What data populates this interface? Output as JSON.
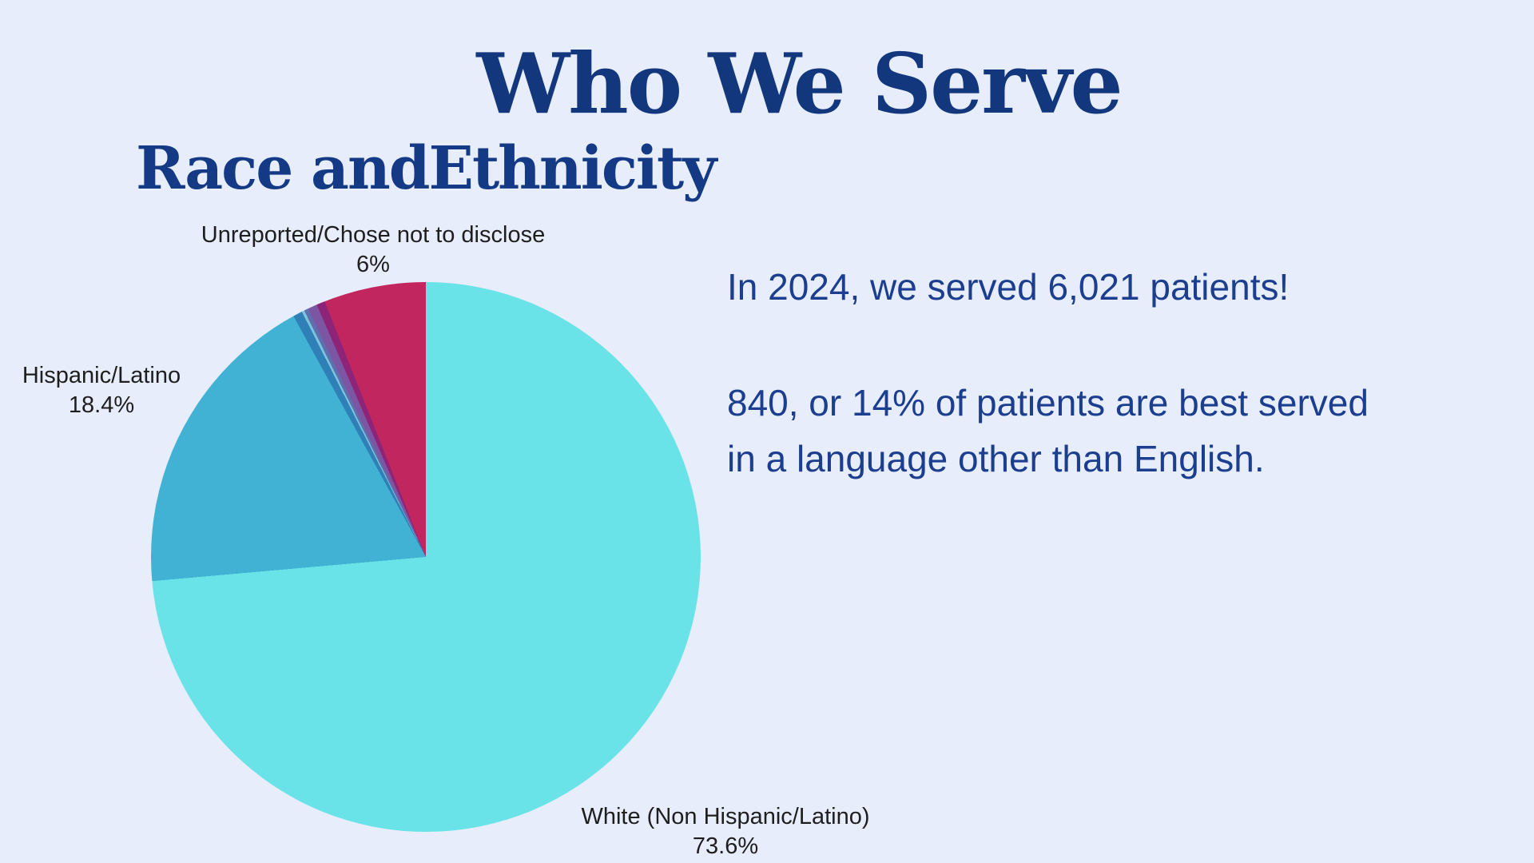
{
  "header": {
    "title": "Who We Serve",
    "subtitle": "Race andEthnicity"
  },
  "colors": {
    "background": "#e8edfc",
    "title_navy": "#12377d",
    "body_navy": "#1c3e8e",
    "label_text": "#1e1e1e"
  },
  "chart_data": {
    "type": "pie",
    "title": "Race andEthnicity",
    "start_angle_deg": 0,
    "direction": "clockwise",
    "legend_position": "none",
    "slices": [
      {
        "label": "White (Non Hispanic/Latino)",
        "value_pct": 73.6,
        "color": "#69e3e7"
      },
      {
        "label": "Hispanic/Latino",
        "value_pct": 18.4,
        "color": "#41b2d4"
      },
      {
        "label": "",
        "value_pct": 0.55,
        "color": "#2f80b6"
      },
      {
        "label": "",
        "value_pct": 0.15,
        "color": "#7cc4de"
      },
      {
        "label": "",
        "value_pct": 0.25,
        "color": "#5f6fae"
      },
      {
        "label": "",
        "value_pct": 0.55,
        "color": "#7c55a3"
      },
      {
        "label": "",
        "value_pct": 0.5,
        "color": "#8e2478"
      },
      {
        "label": "Unreported/Chose not to disclose",
        "value_pct": 6.0,
        "color": "#c2265e"
      }
    ]
  },
  "pie_labels": {
    "unreported": {
      "name": "Unreported/Chose not to disclose",
      "pct": "6%"
    },
    "hispanic": {
      "name": "Hispanic/Latino",
      "pct": "18.4%"
    },
    "white": {
      "name": "White (Non Hispanic/Latino)",
      "pct": "73.6%"
    }
  },
  "right_panel": {
    "line1": "In 2024, we served 6,021 patients!",
    "line2a": "840, or 14% of patients are best served",
    "line2b": "in a language other than English."
  }
}
